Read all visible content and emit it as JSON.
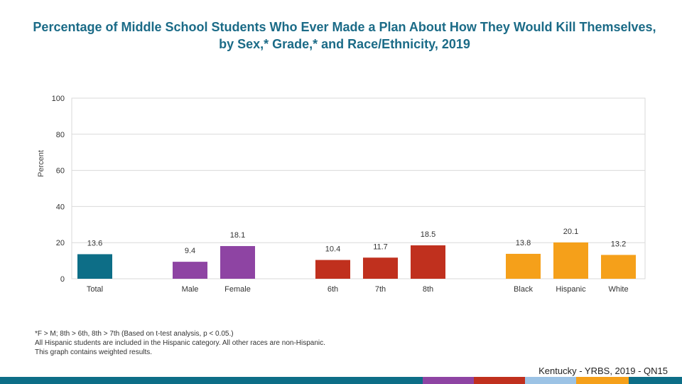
{
  "chart_data": {
    "type": "bar",
    "title": "Percentage of Middle School Students Who Ever Made a Plan About How They Would Kill Themselves, by Sex,* Grade,* and Race/Ethnicity, 2019",
    "ylabel": "Percent",
    "ylim": [
      0,
      100
    ],
    "yticks": [
      0,
      20,
      40,
      60,
      80,
      100
    ],
    "grid": true,
    "categories": [
      "Total",
      "Male",
      "Female",
      "6th",
      "7th",
      "8th",
      "Black",
      "Hispanic",
      "White"
    ],
    "values": [
      13.6,
      9.4,
      18.1,
      10.4,
      11.7,
      18.5,
      13.8,
      20.1,
      13.2
    ],
    "value_labels": [
      "13.6",
      "9.4",
      "18.1",
      "10.4",
      "11.7",
      "18.5",
      "13.8",
      "20.1",
      "13.2"
    ],
    "groups": [
      "total",
      "sex",
      "sex",
      "grade",
      "grade",
      "grade",
      "race",
      "race",
      "race"
    ],
    "colors": [
      "#0d6e87",
      "#8e44a3",
      "#8e44a3",
      "#c0301e",
      "#c0301e",
      "#c0301e",
      "#f5a01a",
      "#f5a01a",
      "#f5a01a"
    ]
  },
  "footnotes": [
    "*F > M; 8th > 6th, 8th > 7th (Based on t-test analysis, p < 0.05.)",
    "All Hispanic students are included in the Hispanic category.  All other races are non-Hispanic.",
    "This graph contains weighted results."
  ],
  "source": "Kentucky - YRBS, 2019 - QN15",
  "bottom_bar_colors": [
    "#0d6e87",
    "#8e44a3",
    "#c0301e",
    "#9cc3e5",
    "#f5a01a",
    "#0d6e87"
  ]
}
